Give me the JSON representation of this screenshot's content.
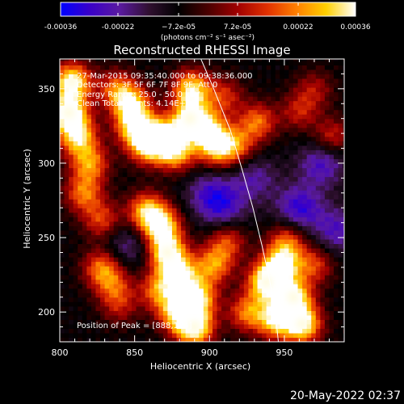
{
  "chart_data": {
    "type": "heatmap",
    "title": "Reconstructed RHESSI Image",
    "xlabel": "Heliocentric X (arcsec)",
    "ylabel": "Heliocentric Y (arcsec)",
    "xlim": [
      800,
      990
    ],
    "ylim": [
      180,
      370
    ],
    "x_ticks": [
      800,
      850,
      900,
      950
    ],
    "x_tick_labels": [
      "800",
      "850",
      "900",
      "950"
    ],
    "y_ticks": [
      200,
      250,
      300,
      350
    ],
    "y_tick_labels": [
      "200",
      "250",
      "300",
      "350"
    ],
    "grid": false,
    "colorbar": {
      "position": "top",
      "range": [
        -0.00036,
        0.00036
      ],
      "tick_values": [
        -0.00036,
        -0.00022,
        -7.2e-05,
        7.2e-05,
        0.00022,
        0.00036
      ],
      "tick_labels": [
        "-0.00036",
        "-0.00022",
        "−7.2e-05",
        "7.2e-05",
        "0.00022",
        "0.00036"
      ],
      "unit_label": "(photons cm⁻² s⁻¹ asec⁻²)",
      "colors": [
        "#0000ff",
        "#3a00c8",
        "#5a1aa0",
        "#301030",
        "#000000",
        "#4a0000",
        "#a00000",
        "#e03000",
        "#ff8000",
        "#ffd000",
        "#ffffff"
      ]
    },
    "annotations": [
      "27-Mar-2015 09:35:40.000 to 09:38:36.000",
      "Detectors: 3F 5F 6F 7F 8F 9F, Att 0",
      "Energy Range: 25.0 - 50.0 keV",
      "Clean    Total counts: 4.14E+03"
    ],
    "peak_label": "Position of Peak = [888,174]",
    "limb_curve": {
      "x": [
        890,
        902,
        914,
        922,
        929,
        935,
        940,
        944,
        946
      ],
      "y": [
        380,
        352,
        322,
        295,
        270,
        245,
        222,
        200,
        180
      ]
    },
    "bright_regions": [
      {
        "x": 806,
        "y": 334,
        "level": 0.95
      },
      {
        "x": 808,
        "y": 355,
        "level": 0.9
      },
      {
        "x": 812,
        "y": 318,
        "level": 0.75
      },
      {
        "x": 820,
        "y": 300,
        "level": 0.6
      },
      {
        "x": 816,
        "y": 280,
        "level": 0.55
      },
      {
        "x": 828,
        "y": 262,
        "level": 0.45
      },
      {
        "x": 838,
        "y": 350,
        "level": 0.5
      },
      {
        "x": 848,
        "y": 340,
        "level": 0.7
      },
      {
        "x": 850,
        "y": 325,
        "level": 0.75
      },
      {
        "x": 858,
        "y": 312,
        "level": 0.65
      },
      {
        "x": 868,
        "y": 318,
        "level": 0.8
      },
      {
        "x": 878,
        "y": 308,
        "level": 0.7
      },
      {
        "x": 887,
        "y": 330,
        "level": 0.85
      },
      {
        "x": 888,
        "y": 350,
        "level": 0.8
      },
      {
        "x": 899,
        "y": 322,
        "level": 0.7
      },
      {
        "x": 905,
        "y": 310,
        "level": 0.6
      },
      {
        "x": 918,
        "y": 312,
        "level": 0.5
      },
      {
        "x": 932,
        "y": 328,
        "level": 0.55
      },
      {
        "x": 910,
        "y": 345,
        "level": 0.4
      },
      {
        "x": 858,
        "y": 268,
        "level": 0.7
      },
      {
        "x": 868,
        "y": 258,
        "level": 0.8
      },
      {
        "x": 872,
        "y": 240,
        "level": 0.85
      },
      {
        "x": 880,
        "y": 225,
        "level": 0.75
      },
      {
        "x": 892,
        "y": 210,
        "level": 0.8
      },
      {
        "x": 890,
        "y": 190,
        "level": 0.95
      },
      {
        "x": 878,
        "y": 200,
        "level": 0.7
      },
      {
        "x": 866,
        "y": 215,
        "level": 0.55
      },
      {
        "x": 903,
        "y": 232,
        "level": 0.6
      },
      {
        "x": 912,
        "y": 248,
        "level": 0.45
      },
      {
        "x": 836,
        "y": 218,
        "level": 0.4
      },
      {
        "x": 828,
        "y": 230,
        "level": 0.55
      },
      {
        "x": 840,
        "y": 204,
        "level": 0.3
      },
      {
        "x": 938,
        "y": 220,
        "level": 0.9
      },
      {
        "x": 948,
        "y": 232,
        "level": 0.8
      },
      {
        "x": 956,
        "y": 210,
        "level": 0.85
      },
      {
        "x": 962,
        "y": 192,
        "level": 0.9
      },
      {
        "x": 944,
        "y": 195,
        "level": 0.75
      },
      {
        "x": 952,
        "y": 248,
        "level": 0.5
      },
      {
        "x": 970,
        "y": 232,
        "level": 0.45
      },
      {
        "x": 925,
        "y": 200,
        "level": 0.55
      },
      {
        "x": 960,
        "y": 335,
        "level": 0.35
      },
      {
        "x": 982,
        "y": 318,
        "level": 0.4
      },
      {
        "x": 970,
        "y": 350,
        "level": 0.3
      }
    ],
    "dark_regions": [
      {
        "x": 910,
        "y": 270,
        "level": -0.5
      },
      {
        "x": 960,
        "y": 270,
        "level": -0.7
      },
      {
        "x": 975,
        "y": 300,
        "level": -0.6
      },
      {
        "x": 845,
        "y": 245,
        "level": -0.4
      },
      {
        "x": 930,
        "y": 290,
        "level": -0.45
      },
      {
        "x": 985,
        "y": 255,
        "level": -0.55
      },
      {
        "x": 900,
        "y": 280,
        "level": -0.5
      }
    ]
  },
  "footer": {
    "date_stamp": "20-May-2022 02:37"
  }
}
